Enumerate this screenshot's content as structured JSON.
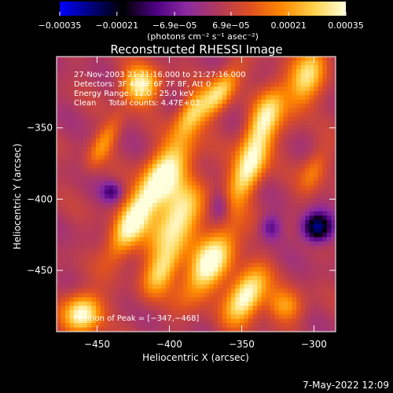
{
  "chart_data": {
    "type": "heatmap",
    "title": "Reconstructed RHESSI Image",
    "xlabel": "Heliocentric X (arcsec)",
    "ylabel": "Heliocentric Y (arcsec)",
    "xlim": [
      -478,
      -285
    ],
    "ylim": [
      -493,
      -300
    ],
    "x_ticks": [
      {
        "value": -450,
        "label": "−450"
      },
      {
        "value": -400,
        "label": "−400"
      },
      {
        "value": -350,
        "label": "−350"
      },
      {
        "value": -300,
        "label": "−300"
      }
    ],
    "y_ticks": [
      {
        "value": -350,
        "label": "−350"
      },
      {
        "value": -400,
        "label": "−400"
      },
      {
        "value": -450,
        "label": "−450"
      }
    ],
    "colorbar": {
      "min": -0.00035,
      "max": 0.00035,
      "label": "(photons cm⁻² s⁻¹ asec⁻²)",
      "ticks": [
        {
          "value": -0.00035,
          "label": "−0.00035"
        },
        {
          "value": -0.00021,
          "label": "−0.00021"
        },
        {
          "value": -6.9e-05,
          "label": "−6.9e−05"
        },
        {
          "value": 6.9e-05,
          "label": "6.9e−05"
        },
        {
          "value": 0.00021,
          "label": "0.00021"
        },
        {
          "value": 0.00035,
          "label": "0.00035"
        }
      ],
      "stops": [
        "#0000ff",
        "#00007a",
        "#000000",
        "#4b0082",
        "#8b2aa0",
        "#b23a5a",
        "#e05020",
        "#ff8a00",
        "#ffd24a",
        "#ffffdd"
      ]
    },
    "annotations": [
      "27-Nov-2003 21:21:16.000 to 21:27:16.000",
      "Detectors: 3F 4F 5F 6F 7F 8F, Att 0",
      "Energy Range: 12.0 - 25.0 keV",
      "Clean     Total counts: 4.47E+03"
    ],
    "peak_label": "Position of Peak = [−347,−468]",
    "peak": {
      "x": -347,
      "y": -468
    },
    "hotspots": [
      {
        "x": -405,
        "y": -385,
        "amp": 0.00034,
        "sx": 9,
        "sy": 22,
        "theta": 0.55
      },
      {
        "x": -395,
        "y": -415,
        "amp": 0.0003,
        "sx": 10,
        "sy": 20,
        "theta": 0.5
      },
      {
        "x": -372,
        "y": -445,
        "amp": 0.00033,
        "sx": 9,
        "sy": 20,
        "theta": 0.55
      },
      {
        "x": -347,
        "y": -468,
        "amp": 0.00035,
        "sx": 8,
        "sy": 14,
        "theta": 0.5
      },
      {
        "x": -428,
        "y": -420,
        "amp": 0.00026,
        "sx": 7,
        "sy": 18,
        "theta": 0.5
      },
      {
        "x": -405,
        "y": -450,
        "amp": 0.00022,
        "sx": 7,
        "sy": 14,
        "theta": 0.5
      },
      {
        "x": -345,
        "y": -380,
        "amp": 0.00028,
        "sx": 7,
        "sy": 18,
        "theta": 0.45
      },
      {
        "x": -335,
        "y": -345,
        "amp": 0.00026,
        "sx": 7,
        "sy": 20,
        "theta": 0.45
      },
      {
        "x": -365,
        "y": -325,
        "amp": 0.00025,
        "sx": 6,
        "sy": 14,
        "theta": 0.6
      },
      {
        "x": -420,
        "y": -320,
        "amp": 0.0003,
        "sx": 9,
        "sy": 9,
        "theta": 0.5
      },
      {
        "x": -385,
        "y": -340,
        "amp": 0.00022,
        "sx": 6,
        "sy": 12,
        "theta": 0.5
      },
      {
        "x": -305,
        "y": -315,
        "amp": 0.00024,
        "sx": 8,
        "sy": 18,
        "theta": 0.4
      },
      {
        "x": -300,
        "y": -380,
        "amp": 0.00014,
        "sx": 6,
        "sy": 12,
        "theta": 0.4
      },
      {
        "x": -460,
        "y": -480,
        "amp": 0.00032,
        "sx": 9,
        "sy": 10,
        "theta": 0.5
      },
      {
        "x": -320,
        "y": -475,
        "amp": 0.00018,
        "sx": 9,
        "sy": 8,
        "theta": 0.5
      },
      {
        "x": -445,
        "y": -360,
        "amp": 0.00016,
        "sx": 5,
        "sy": 14,
        "theta": 0.5
      }
    ],
    "coldspots": [
      {
        "x": -298,
        "y": -420,
        "amp": -0.00034,
        "sx": 7,
        "sy": 7
      },
      {
        "x": -440,
        "y": -395,
        "amp": -0.00016,
        "sx": 5,
        "sy": 5
      },
      {
        "x": -365,
        "y": -405,
        "amp": -0.00012,
        "sx": 5,
        "sy": 8
      },
      {
        "x": -330,
        "y": -420,
        "amp": -0.00014,
        "sx": 5,
        "sy": 6
      }
    ]
  },
  "footer": {
    "timestamp": "7-May-2022 12:09"
  }
}
